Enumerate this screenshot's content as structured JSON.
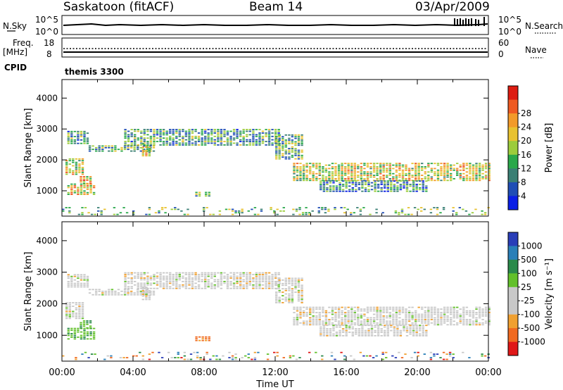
{
  "header": {
    "station": "Saskatoon (fitACF)",
    "beam": "Beam 14",
    "date": "03/Apr/2009"
  },
  "top_panels": {
    "nsky_label": "N.Sky",
    "nsearch_label": "N.Search",
    "noise_ticks_left": [
      "10^5",
      "10^0"
    ],
    "noise_ticks_right": [
      "10^5",
      "10^0"
    ],
    "freq_label_1": "Freq.",
    "freq_label_2": "[MHz]",
    "freq_ticks": [
      "18",
      "8"
    ],
    "nave_label": "Nave",
    "nave_ticks": [
      "60",
      "0"
    ],
    "cpid_label": "CPID",
    "cpid_value": "themis 3300"
  },
  "chart_data": [
    {
      "type": "heatmap",
      "name": "power",
      "ylabel": "Slant Range [km]",
      "ylim": [
        180,
        4600
      ],
      "yticks": [
        1000,
        2000,
        3000,
        4000
      ],
      "xlim": [
        0,
        24
      ],
      "colorbar": {
        "label": "Power [dB]",
        "ticks": [
          "4",
          "8",
          "12",
          "16",
          "20",
          "24",
          "28"
        ],
        "colors": [
          "#0a1ee6",
          "#1f4db5",
          "#3a7f74",
          "#2aa84a",
          "#9ccc3c",
          "#e8c230",
          "#f29a2a",
          "#ee5a22",
          "#dd1c12"
        ]
      },
      "echo_regions": [
        {
          "t0": 0.2,
          "t1": 1.2,
          "r0": 1500,
          "r1": 2000,
          "level": 0.55
        },
        {
          "t0": 0.3,
          "t1": 1.5,
          "r0": 2500,
          "r1": 2900,
          "level": 0.35
        },
        {
          "t0": 0.3,
          "t1": 1.8,
          "r0": 850,
          "r1": 1200,
          "level": 0.6
        },
        {
          "t0": 1.0,
          "t1": 1.6,
          "r0": 1200,
          "r1": 1450,
          "level": 0.65
        },
        {
          "t0": 1.5,
          "t1": 5.2,
          "r0": 2250,
          "r1": 2450,
          "level": 0.4
        },
        {
          "t0": 3.5,
          "t1": 12.3,
          "r0": 2450,
          "r1": 3000,
          "level": 0.35
        },
        {
          "t0": 4.5,
          "t1": 5.0,
          "r0": 2100,
          "r1": 2500,
          "level": 0.55
        },
        {
          "t0": 7.5,
          "t1": 8.3,
          "r0": 800,
          "r1": 950,
          "level": 0.4
        },
        {
          "t0": 12.0,
          "t1": 13.5,
          "r0": 2000,
          "r1": 2800,
          "level": 0.4
        },
        {
          "t0": 13.0,
          "t1": 24.0,
          "r0": 1300,
          "r1": 1900,
          "level": 0.55
        },
        {
          "t0": 14.5,
          "t1": 20.5,
          "r0": 950,
          "r1": 1300,
          "level": 0.3
        },
        {
          "t0": 0.0,
          "t1": 24.0,
          "r0": 200,
          "r1": 450,
          "level": 0.4
        }
      ]
    },
    {
      "type": "heatmap",
      "name": "velocity",
      "ylabel": "Slant Range [km]",
      "xlabel": "Time UT",
      "ylim": [
        180,
        4600
      ],
      "yticks": [
        1000,
        2000,
        3000,
        4000
      ],
      "xlim": [
        0,
        24
      ],
      "xticks": [
        "00:00",
        "04:00",
        "08:00",
        "12:00",
        "16:00",
        "20:00",
        "00:00"
      ],
      "colorbar": {
        "label": "Velocity [m s⁻¹]",
        "ticks": [
          "1000",
          "500",
          "100",
          "25",
          "-25",
          "-100",
          "-500",
          "-1000"
        ],
        "colors": [
          "#2a3eb8",
          "#2a7fb8",
          "#2a8a4a",
          "#62c02a",
          "#c8c8c8",
          "#c8c8c8",
          "#f0a030",
          "#f06a20",
          "#e01818"
        ]
      },
      "echo_regions": [
        {
          "t0": 0.2,
          "t1": 1.2,
          "r0": 1500,
          "r1": 2000,
          "vel": "neutral"
        },
        {
          "t0": 0.3,
          "t1": 1.5,
          "r0": 2500,
          "r1": 2900,
          "vel": "neutral"
        },
        {
          "t0": 0.3,
          "t1": 1.8,
          "r0": 850,
          "r1": 1200,
          "vel": "positive"
        },
        {
          "t0": 1.0,
          "t1": 1.6,
          "r0": 1200,
          "r1": 1450,
          "vel": "positive"
        },
        {
          "t0": 1.5,
          "t1": 5.2,
          "r0": 2250,
          "r1": 2450,
          "vel": "neutral"
        },
        {
          "t0": 3.5,
          "t1": 12.3,
          "r0": 2450,
          "r1": 3000,
          "vel": "neutral"
        },
        {
          "t0": 4.5,
          "t1": 5.0,
          "r0": 2100,
          "r1": 2500,
          "vel": "neutral"
        },
        {
          "t0": 7.5,
          "t1": 8.3,
          "r0": 800,
          "r1": 950,
          "vel": "negative"
        },
        {
          "t0": 12.0,
          "t1": 13.5,
          "r0": 2000,
          "r1": 2800,
          "vel": "neutral"
        },
        {
          "t0": 13.0,
          "t1": 24.0,
          "r0": 1300,
          "r1": 1900,
          "vel": "neutral"
        },
        {
          "t0": 14.5,
          "t1": 20.5,
          "r0": 950,
          "r1": 1300,
          "vel": "neutral"
        },
        {
          "t0": 0.0,
          "t1": 24.0,
          "r0": 200,
          "r1": 450,
          "vel": "mixed"
        }
      ]
    }
  ]
}
